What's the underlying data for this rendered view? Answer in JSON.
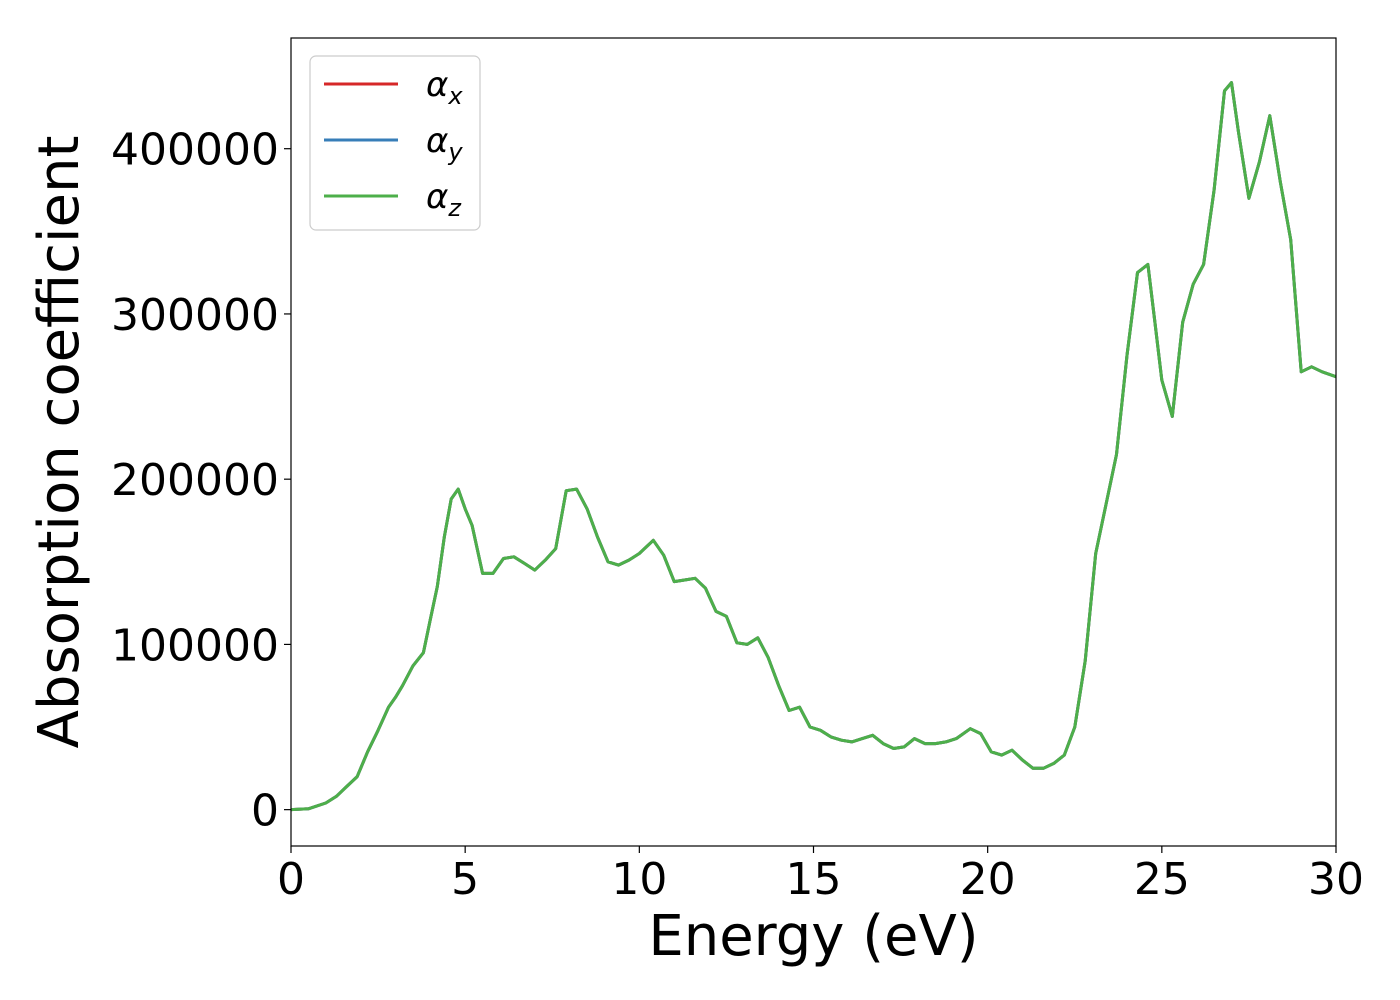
{
  "chart_data": {
    "type": "line",
    "xlabel": "Energy (eV)",
    "ylabel": "Absorption coefficient",
    "xlim": [
      0,
      30
    ],
    "ylim": [
      -22000,
      467000
    ],
    "xticks": [
      0,
      5,
      10,
      15,
      20,
      25,
      30
    ],
    "xtick_labels": [
      "0",
      "5",
      "10",
      "15",
      "20",
      "25",
      "30"
    ],
    "yticks": [
      0,
      100000,
      200000,
      300000,
      400000
    ],
    "ytick_labels": [
      "0",
      "100000",
      "200000",
      "300000",
      "400000"
    ],
    "grid": false,
    "legend_position": "top-left",
    "x": [
      0,
      0.5,
      1.0,
      1.3,
      1.6,
      1.9,
      2.2,
      2.5,
      2.8,
      3.0,
      3.2,
      3.5,
      3.8,
      4.0,
      4.2,
      4.4,
      4.6,
      4.8,
      5.0,
      5.2,
      5.5,
      5.8,
      6.1,
      6.4,
      6.7,
      7.0,
      7.3,
      7.6,
      7.9,
      8.2,
      8.5,
      8.8,
      9.1,
      9.4,
      9.7,
      10.0,
      10.4,
      10.7,
      11.0,
      11.3,
      11.6,
      11.9,
      12.2,
      12.5,
      12.8,
      13.1,
      13.4,
      13.7,
      14.0,
      14.3,
      14.6,
      14.9,
      15.2,
      15.5,
      15.8,
      16.1,
      16.4,
      16.7,
      17.0,
      17.3,
      17.6,
      17.9,
      18.2,
      18.5,
      18.8,
      19.1,
      19.5,
      19.8,
      20.1,
      20.4,
      20.7,
      21.0,
      21.3,
      21.6,
      21.9,
      22.2,
      22.5,
      22.8,
      23.1,
      23.4,
      23.7,
      24.0,
      24.3,
      24.6,
      24.8,
      25.0,
      25.3,
      25.6,
      25.9,
      26.2,
      26.5,
      26.8,
      27.0,
      27.2,
      27.5,
      27.8,
      28.1,
      28.4,
      28.7,
      29.0,
      29.3,
      29.6,
      30.0
    ],
    "series": [
      {
        "name": "α_x",
        "color": "#d62728",
        "values": [
          0,
          500,
          4000,
          8000,
          14000,
          20000,
          35000,
          48000,
          62000,
          68000,
          75000,
          87000,
          95000,
          115000,
          135000,
          165000,
          188000,
          194000,
          182000,
          172000,
          143000,
          143000,
          152000,
          153000,
          149000,
          145000,
          151000,
          158000,
          193000,
          194000,
          182000,
          165000,
          150000,
          148000,
          151000,
          155000,
          163000,
          154000,
          138000,
          139000,
          140000,
          134000,
          120000,
          117000,
          101000,
          100000,
          104000,
          92000,
          75000,
          60000,
          62000,
          50000,
          48000,
          44000,
          42000,
          41000,
          43000,
          45000,
          40000,
          37000,
          38000,
          43000,
          40000,
          40000,
          41000,
          43000,
          49000,
          46000,
          35000,
          33000,
          36000,
          30000,
          25000,
          25000,
          28000,
          33000,
          50000,
          90000,
          155000,
          185000,
          215000,
          275000,
          325000,
          330000,
          295000,
          260000,
          238000,
          295000,
          318000,
          330000,
          375000,
          435000,
          440000,
          410000,
          370000,
          392000,
          420000,
          380000,
          345000,
          265000,
          268000,
          265000,
          262000
        ]
      },
      {
        "name": "α_y",
        "color": "#377eb8",
        "values": [
          0,
          500,
          4000,
          8000,
          14000,
          20000,
          35000,
          48000,
          62000,
          68000,
          75000,
          87000,
          95000,
          115000,
          135000,
          165000,
          188000,
          194000,
          182000,
          172000,
          143000,
          143000,
          152000,
          153000,
          149000,
          145000,
          151000,
          158000,
          193000,
          194000,
          182000,
          165000,
          150000,
          148000,
          151000,
          155000,
          163000,
          154000,
          138000,
          139000,
          140000,
          134000,
          120000,
          117000,
          101000,
          100000,
          104000,
          92000,
          75000,
          60000,
          62000,
          50000,
          48000,
          44000,
          42000,
          41000,
          43000,
          45000,
          40000,
          37000,
          38000,
          43000,
          40000,
          40000,
          41000,
          43000,
          49000,
          46000,
          35000,
          33000,
          36000,
          30000,
          25000,
          25000,
          28000,
          33000,
          50000,
          90000,
          155000,
          185000,
          215000,
          275000,
          325000,
          330000,
          295000,
          260000,
          238000,
          295000,
          318000,
          330000,
          375000,
          435000,
          440000,
          410000,
          370000,
          392000,
          420000,
          380000,
          345000,
          265000,
          268000,
          265000,
          262000
        ]
      },
      {
        "name": "α_z",
        "color": "#4daf4a",
        "values": [
          0,
          500,
          4000,
          8000,
          14000,
          20000,
          35000,
          48000,
          62000,
          68000,
          75000,
          87000,
          95000,
          115000,
          135000,
          165000,
          188000,
          194000,
          182000,
          172000,
          143000,
          143000,
          152000,
          153000,
          149000,
          145000,
          151000,
          158000,
          193000,
          194000,
          182000,
          165000,
          150000,
          148000,
          151000,
          155000,
          163000,
          154000,
          138000,
          139000,
          140000,
          134000,
          120000,
          117000,
          101000,
          100000,
          104000,
          92000,
          75000,
          60000,
          62000,
          50000,
          48000,
          44000,
          42000,
          41000,
          43000,
          45000,
          40000,
          37000,
          38000,
          43000,
          40000,
          40000,
          41000,
          43000,
          49000,
          46000,
          35000,
          33000,
          36000,
          30000,
          25000,
          25000,
          28000,
          33000,
          50000,
          90000,
          155000,
          185000,
          215000,
          275000,
          325000,
          330000,
          295000,
          260000,
          238000,
          295000,
          318000,
          330000,
          375000,
          435000,
          440000,
          410000,
          370000,
          392000,
          420000,
          380000,
          345000,
          265000,
          268000,
          265000,
          262000
        ]
      }
    ],
    "legend": [
      {
        "symbol": "α",
        "subscript": "x",
        "color": "#d62728"
      },
      {
        "symbol": "α",
        "subscript": "y",
        "color": "#377eb8"
      },
      {
        "symbol": "α",
        "subscript": "z",
        "color": "#4daf4a"
      }
    ]
  }
}
